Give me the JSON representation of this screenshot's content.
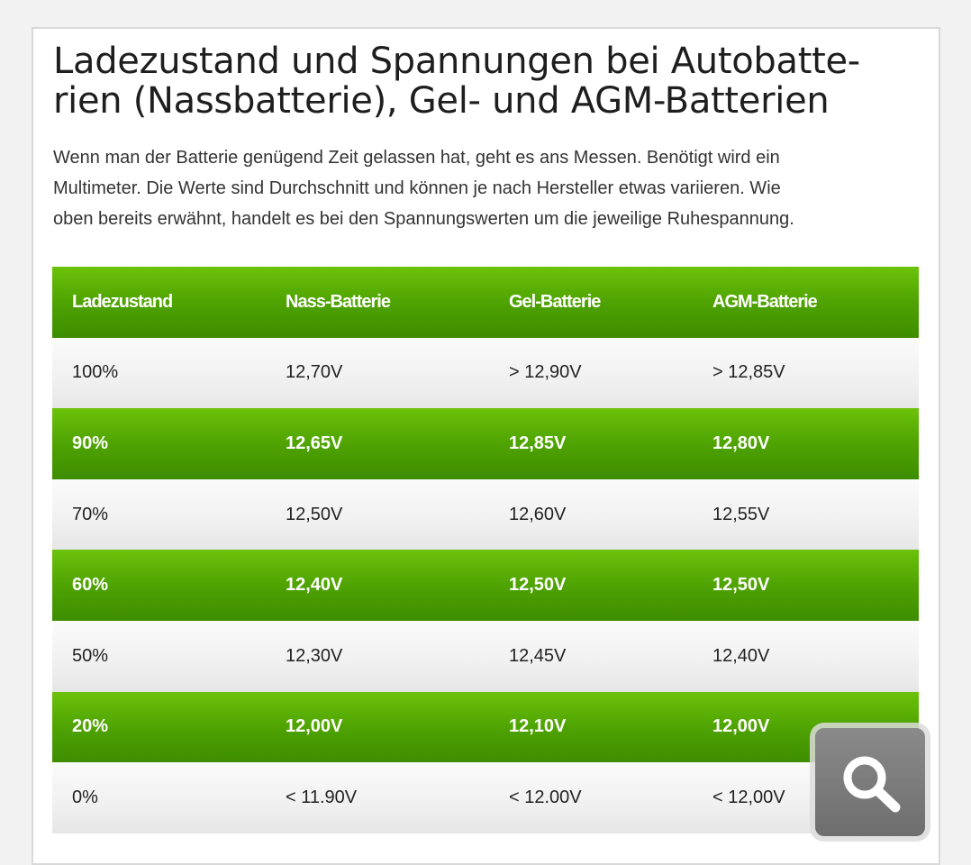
{
  "article": {
    "title_lines": [
      "Ladezustand und Spannungen bei Autobatte-",
      "rien (Nassbatterie), Gel- und AGM-Batterien"
    ],
    "intro_lines": [
      "Wenn man der Batterie genügend Zeit gelassen hat, geht es ans Messen. Benötigt wird ein",
      "Multimeter. Die Werte sind Durchschnitt und können je nach Hersteller etwas variieren. Wie",
      "oben bereits erwähnt, handelt es bei den Spannungswerten um die jeweilige Ruhespannung."
    ]
  },
  "table": {
    "headers": [
      "Ladezustand",
      "Nass-Batterie",
      "Gel-Batterie",
      "AGM-Batterie"
    ],
    "rows": [
      [
        "100%",
        "12,70V",
        "> 12,90V",
        "> 12,85V"
      ],
      [
        "90%",
        "12,65V",
        "12,85V",
        "12,80V"
      ],
      [
        "70%",
        "12,50V",
        "12,60V",
        "12,55V"
      ],
      [
        "60%",
        "12,40V",
        "12,50V",
        "12,50V"
      ],
      [
        "50%",
        "12,30V",
        "12,45V",
        "12,40V"
      ],
      [
        "20%",
        "12,00V",
        "12,10V",
        "12,00V"
      ],
      [
        "0%",
        "< 11.90V",
        "< 12.00V",
        "< 12,00V"
      ]
    ]
  },
  "colors": {
    "accent_green": "#4fa302",
    "row_light": "#f0f0f0"
  },
  "zoom_button": {
    "icon": "magnifier-icon"
  }
}
